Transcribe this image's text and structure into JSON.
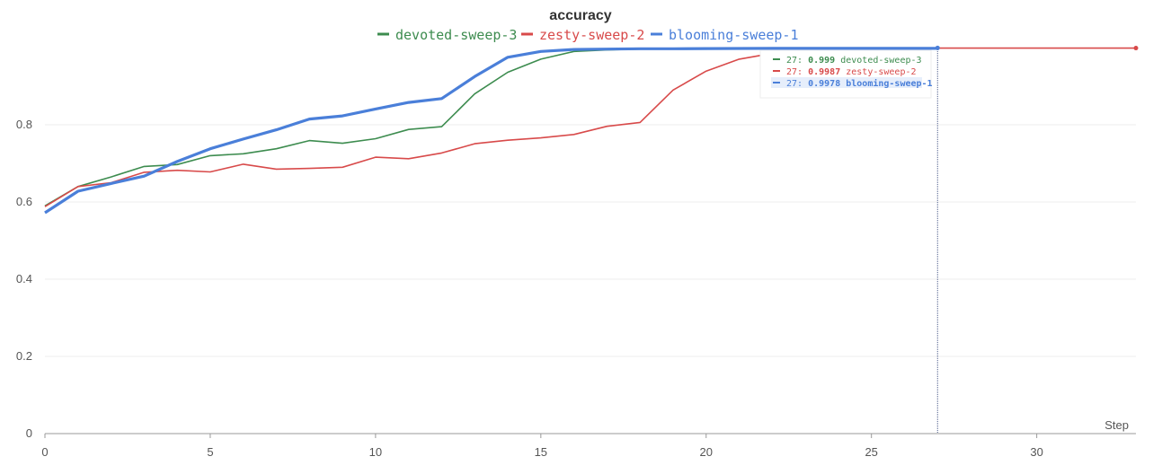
{
  "chart_data": {
    "type": "line",
    "title": "accuracy",
    "xlabel": "Step",
    "ylabel": "",
    "xlim": [
      0,
      33
    ],
    "ylim": [
      0,
      1.0
    ],
    "x_ticks": [
      0,
      5,
      10,
      15,
      20,
      25,
      30
    ],
    "y_ticks": [
      0,
      0.2,
      0.4,
      0.6,
      0.8
    ],
    "grid": "horizontal",
    "legend_position": "top-center",
    "series": [
      {
        "name": "devoted-sweep-3",
        "color": "#3d8c4f",
        "x": [
          0,
          1,
          2,
          3,
          4,
          5,
          6,
          7,
          8,
          9,
          10,
          11,
          12,
          13,
          14,
          15,
          16,
          17,
          18,
          19,
          20,
          21,
          22,
          23,
          24,
          25,
          26,
          27
        ],
        "y": [
          0.59,
          0.64,
          0.665,
          0.692,
          0.697,
          0.72,
          0.725,
          0.738,
          0.759,
          0.752,
          0.764,
          0.788,
          0.795,
          0.88,
          0.936,
          0.97,
          0.99,
          0.994,
          0.996,
          0.997,
          0.998,
          0.998,
          0.999,
          0.999,
          0.999,
          0.999,
          0.999,
          0.999
        ]
      },
      {
        "name": "zesty-sweep-2",
        "color": "#d84a4a",
        "x": [
          0,
          1,
          2,
          3,
          4,
          5,
          6,
          7,
          8,
          9,
          10,
          11,
          12,
          13,
          14,
          15,
          16,
          17,
          18,
          19,
          20,
          21,
          22,
          23,
          24,
          25,
          26,
          27,
          33
        ],
        "y": [
          0.588,
          0.64,
          0.65,
          0.677,
          0.682,
          0.678,
          0.698,
          0.685,
          0.687,
          0.69,
          0.716,
          0.712,
          0.727,
          0.751,
          0.76,
          0.766,
          0.775,
          0.796,
          0.806,
          0.89,
          0.939,
          0.97,
          0.985,
          0.99,
          0.993,
          0.995,
          0.997,
          0.9987,
          0.9987
        ]
      },
      {
        "name": "blooming-sweep-1",
        "color": "#4a7fd9",
        "x": [
          0,
          1,
          2,
          3,
          4,
          5,
          6,
          7,
          8,
          9,
          10,
          11,
          12,
          13,
          14,
          15,
          16,
          17,
          18,
          19,
          20,
          21,
          22,
          23,
          24,
          25,
          26,
          27
        ],
        "y": [
          0.572,
          0.628,
          0.648,
          0.667,
          0.705,
          0.738,
          0.763,
          0.787,
          0.815,
          0.823,
          0.841,
          0.858,
          0.868,
          0.925,
          0.975,
          0.99,
          0.995,
          0.996,
          0.997,
          0.997,
          0.9975,
          0.9977,
          0.9978,
          0.9978,
          0.9978,
          0.9978,
          0.9978,
          0.9978
        ]
      }
    ],
    "hover": {
      "step": 27,
      "entries": [
        {
          "prefix": "27:",
          "value": "0.999",
          "name": "devoted-sweep-3",
          "color": "#3d8c4f"
        },
        {
          "prefix": "27:",
          "value": "0.9987",
          "name": "zesty-sweep-2",
          "color": "#d84a4a"
        },
        {
          "prefix": "27:",
          "value": "0.9978",
          "name": "blooming-sweep-1",
          "color": "#4a7fd9"
        }
      ]
    }
  }
}
